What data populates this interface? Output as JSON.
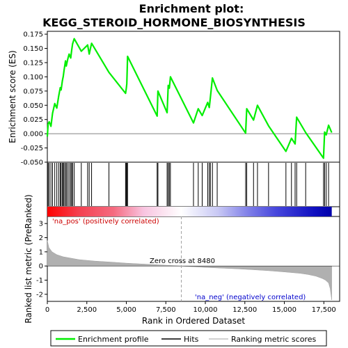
{
  "chart_data": {
    "type": "line",
    "title_line1": "Enrichment plot:",
    "title_line2": "KEGG_STEROID_HORMONE_BIOSYNTHESIS",
    "xlabel": "Rank in Ordered Dataset",
    "ylabel_top": "Enrichment score (ES)",
    "ylabel_bottom": "Ranked list metric (PreRanked)",
    "xlim": [
      0,
      18500
    ],
    "x_ticks": [
      0,
      2500,
      5000,
      7500,
      10000,
      12500,
      15000,
      17500
    ],
    "es_ylim": [
      -0.05,
      0.18
    ],
    "es_ticks": [
      "-0.050",
      "-0.025",
      "0.000",
      "0.025",
      "0.050",
      "0.075",
      "0.100",
      "0.125",
      "0.150",
      "0.175"
    ],
    "metric_ylim": [
      -2.5,
      3.5
    ],
    "metric_ticks": [
      -2,
      -1,
      0,
      1,
      2,
      3
    ],
    "hits": [
      50,
      120,
      230,
      330,
      470,
      600,
      720,
      820,
      870,
      950,
      1010,
      1060,
      1150,
      1200,
      1290,
      1380,
      1480,
      1540,
      1600,
      1700,
      2150,
      2550,
      2650,
      2800,
      3900,
      4950,
      5000,
      5030,
      5080,
      6950,
      7000,
      7580,
      7650,
      7720,
      7790,
      9250,
      9550,
      9800,
      10150,
      10250,
      10320,
      10450,
      10750,
      12550,
      12620,
      13050,
      13300,
      14000,
      15100,
      15450,
      15680,
      15780,
      16350,
      17480,
      17550,
      17650,
      17800
    ],
    "es_points": [
      [
        0,
        -0.005
      ],
      [
        50,
        0.017
      ],
      [
        120,
        0.021
      ],
      [
        230,
        0.013
      ],
      [
        330,
        0.036
      ],
      [
        470,
        0.053
      ],
      [
        600,
        0.045
      ],
      [
        720,
        0.066
      ],
      [
        820,
        0.081
      ],
      [
        870,
        0.077
      ],
      [
        950,
        0.093
      ],
      [
        1010,
        0.101
      ],
      [
        1060,
        0.112
      ],
      [
        1150,
        0.128
      ],
      [
        1200,
        0.119
      ],
      [
        1290,
        0.131
      ],
      [
        1380,
        0.14
      ],
      [
        1480,
        0.133
      ],
      [
        1540,
        0.147
      ],
      [
        1600,
        0.158
      ],
      [
        1700,
        0.167
      ],
      [
        2150,
        0.145
      ],
      [
        2550,
        0.156
      ],
      [
        2650,
        0.14
      ],
      [
        2800,
        0.159
      ],
      [
        3900,
        0.108
      ],
      [
        4950,
        0.071
      ],
      [
        5000,
        0.08
      ],
      [
        5030,
        0.088
      ],
      [
        5080,
        0.136
      ],
      [
        6950,
        0.031
      ],
      [
        7000,
        0.075
      ],
      [
        7580,
        0.037
      ],
      [
        7650,
        0.085
      ],
      [
        7720,
        0.08
      ],
      [
        7790,
        0.1
      ],
      [
        9250,
        0.019
      ],
      [
        9550,
        0.044
      ],
      [
        9800,
        0.032
      ],
      [
        10150,
        0.055
      ],
      [
        10250,
        0.046
      ],
      [
        10320,
        0.064
      ],
      [
        10450,
        0.098
      ],
      [
        10750,
        0.076
      ],
      [
        12550,
        0.001
      ],
      [
        12620,
        0.044
      ],
      [
        13050,
        0.024
      ],
      [
        13300,
        0.05
      ],
      [
        14000,
        0.014
      ],
      [
        15100,
        -0.031
      ],
      [
        15450,
        -0.008
      ],
      [
        15680,
        -0.018
      ],
      [
        15780,
        0.029
      ],
      [
        16350,
        0.002
      ],
      [
        17480,
        -0.043
      ],
      [
        17550,
        0.003
      ],
      [
        17650,
        -0.002
      ],
      [
        17800,
        0.015
      ],
      [
        18000,
        0.002
      ]
    ],
    "metric_curve": [
      [
        0,
        1.8
      ],
      [
        100,
        1.3
      ],
      [
        300,
        1.0
      ],
      [
        600,
        0.8
      ],
      [
        1000,
        0.65
      ],
      [
        2000,
        0.45
      ],
      [
        3000,
        0.35
      ],
      [
        4000,
        0.28
      ],
      [
        5000,
        0.2
      ],
      [
        6000,
        0.14
      ],
      [
        7000,
        0.08
      ],
      [
        8000,
        0.03
      ],
      [
        8480,
        0.0
      ],
      [
        9000,
        -0.04
      ],
      [
        10000,
        -0.1
      ],
      [
        11000,
        -0.15
      ],
      [
        12000,
        -0.2
      ],
      [
        13000,
        -0.26
      ],
      [
        14000,
        -0.33
      ],
      [
        15000,
        -0.42
      ],
      [
        16000,
        -0.52
      ],
      [
        16500,
        -0.6
      ],
      [
        17000,
        -0.72
      ],
      [
        17400,
        -0.88
      ],
      [
        17600,
        -1.0
      ],
      [
        17800,
        -1.2
      ],
      [
        17900,
        -1.6
      ],
      [
        18000,
        -2.4
      ]
    ],
    "zero_cross_x": 8480,
    "zero_cross_label": "Zero cross at 8480",
    "pos_label": "'na_pos' (positively correlated)",
    "neg_label": "'na_neg' (negatively correlated)",
    "legend": [
      {
        "label": "Enrichment profile",
        "color": "#00ee00"
      },
      {
        "label": "Hits",
        "color": "#000000"
      },
      {
        "label": "Ranking metric scores",
        "color": "#c0c0c0"
      }
    ],
    "colors": {
      "es_line": "#00ee00",
      "metric_fill": "#b0b0b0",
      "pos_text": "#cc0000",
      "neg_text": "#0000cc",
      "zero_line": "#808080"
    },
    "heatbar_stops": [
      {
        "x": 0,
        "color": "#ff0000"
      },
      {
        "x": 2000,
        "color": "#f44050"
      },
      {
        "x": 4200,
        "color": "#f56b80"
      },
      {
        "x": 6100,
        "color": "#f8c4e0"
      },
      {
        "x": 8480,
        "color": "#ffffff"
      },
      {
        "x": 10800,
        "color": "#c8c8f4"
      },
      {
        "x": 12700,
        "color": "#8080e8"
      },
      {
        "x": 14500,
        "color": "#4646dc"
      },
      {
        "x": 16900,
        "color": "#1010c0"
      },
      {
        "x": 18000,
        "color": "#0000aa"
      }
    ]
  }
}
